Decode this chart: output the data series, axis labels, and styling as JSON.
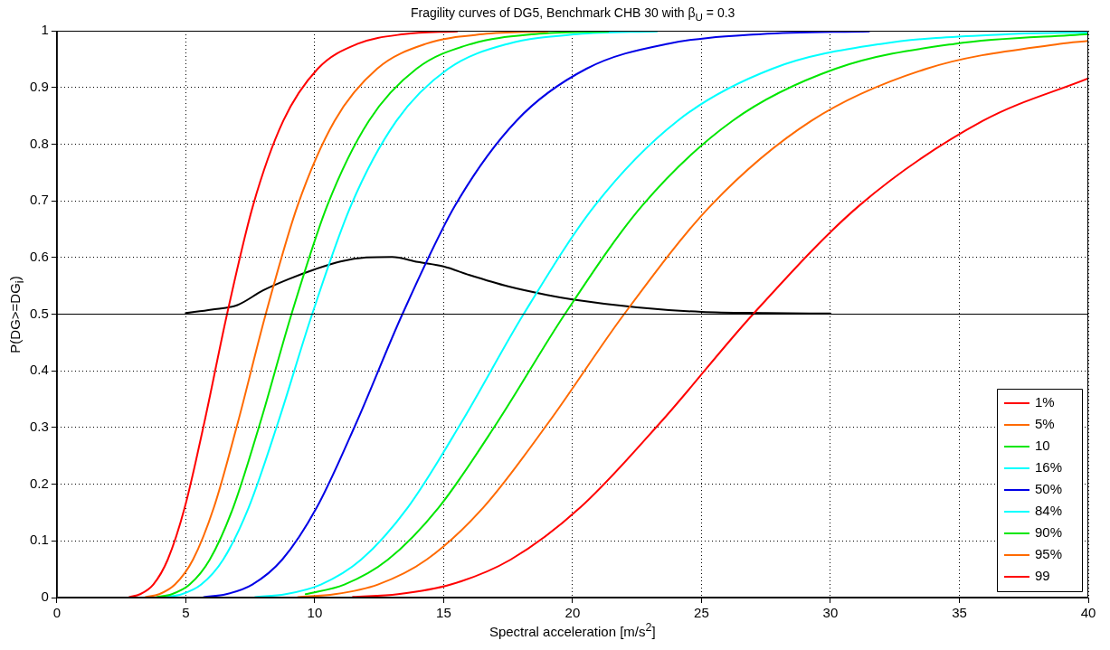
{
  "chart_data": {
    "type": "line",
    "title": "Fragility curves of DG5, Benchmark CHB 30 with β$_{U}$ = 0.3",
    "xlabel": "Spectral acceleration [m/s$^{2}$]",
    "ylabel": "P(DG>=DG$_{i}$)",
    "xlim": [
      0,
      40
    ],
    "xticks": [
      0,
      5,
      10,
      15,
      20,
      25,
      30,
      35,
      40
    ],
    "ylim": [
      0,
      1
    ],
    "yticks": [
      0,
      0.1,
      0.2,
      0.3,
      0.4,
      0.5,
      0.6,
      0.7,
      0.8,
      0.9,
      1
    ],
    "grid": true,
    "legend": "bottom right",
    "marker": "none",
    "line_style": "solid",
    "ref_lines": [
      {
        "axis": "y",
        "value": 0.5,
        "color": "#000000"
      }
    ],
    "series": [
      {
        "name": "1%",
        "color": "#ff0000",
        "x": [
          2.81,
          3.23,
          3.74,
          4.3,
          4.96,
          5.72,
          6.6,
          7.61,
          8.78,
          10.12,
          11.67,
          13.46,
          15.52
        ],
        "values": [
          0.001,
          0.006,
          0.023,
          0.067,
          0.159,
          0.309,
          0.5,
          0.692,
          0.841,
          0.933,
          0.977,
          0.994,
          0.999
        ]
      },
      {
        "name": "5%",
        "color": "#ff6a00",
        "x": [
          3.44,
          3.97,
          4.58,
          5.28,
          6.09,
          7.02,
          8.1,
          9.34,
          10.77,
          12.42,
          14.32,
          16.52,
          19.04
        ],
        "values": [
          0.001,
          0.006,
          0.023,
          0.067,
          0.159,
          0.309,
          0.5,
          0.692,
          0.841,
          0.933,
          0.977,
          0.994,
          0.999
        ]
      },
      {
        "name": "10",
        "color": "#00e600",
        "x": [
          3.87,
          4.46,
          5.15,
          5.93,
          6.84,
          7.89,
          9.1,
          10.49,
          12.1,
          13.95,
          16.09,
          18.55,
          21.39
        ],
        "values": [
          0.001,
          0.006,
          0.023,
          0.067,
          0.159,
          0.309,
          0.5,
          0.692,
          0.841,
          0.933,
          0.977,
          0.994,
          0.999
        ]
      },
      {
        "name": "16%",
        "color": "#00ffff",
        "x": [
          4.21,
          4.85,
          5.6,
          6.45,
          7.44,
          8.58,
          9.9,
          11.41,
          13.17,
          15.18,
          17.5,
          20.19,
          23.27
        ],
        "values": [
          0.001,
          0.006,
          0.023,
          0.067,
          0.159,
          0.309,
          0.5,
          0.692,
          0.841,
          0.933,
          0.977,
          0.994,
          0.999
        ]
      },
      {
        "name": "50%",
        "color": "#0000e6",
        "x": [
          5.7,
          6.57,
          7.58,
          8.74,
          10.08,
          11.62,
          13.4,
          15.45,
          17.82,
          20.54,
          23.69,
          27.32,
          31.5
        ],
        "values": [
          0.001,
          0.006,
          0.023,
          0.067,
          0.159,
          0.309,
          0.5,
          0.692,
          0.841,
          0.933,
          0.977,
          0.994,
          0.999
        ]
      },
      {
        "name": "84%",
        "color": "#00ffff",
        "x": [
          7.69,
          8.87,
          10.24,
          11.8,
          13.61,
          15.69,
          18.1,
          20.87,
          24.07,
          27.75,
          32.0,
          36.91,
          40
        ],
        "values": [
          0.001,
          0.006,
          0.023,
          0.067,
          0.159,
          0.309,
          0.5,
          0.692,
          0.841,
          0.933,
          0.977,
          0.994,
          0.997
        ]
      },
      {
        "name": "90%",
        "color": "#00e600",
        "x": [
          9.65,
          11.15,
          12.84,
          14.81,
          17.08,
          19.7,
          22.71,
          26.2,
          30.2,
          34.83,
          40
        ],
        "values": [
          0.006,
          0.023,
          0.067,
          0.159,
          0.309,
          0.5,
          0.692,
          0.841,
          0.933,
          0.977,
          0.994
        ]
      },
      {
        "name": "95%",
        "color": "#ff6a00",
        "x": [
          9.35,
          10.78,
          12.45,
          14.34,
          16.54,
          19.07,
          22.0,
          25.37,
          29.26,
          33.73,
          38.9,
          40
        ],
        "values": [
          0.001,
          0.006,
          0.023,
          0.067,
          0.159,
          0.309,
          0.5,
          0.692,
          0.841,
          0.933,
          0.977,
          0.982
        ]
      },
      {
        "name": "99",
        "color": "#ff0000",
        "x": [
          11.48,
          13.23,
          15.28,
          17.6,
          20.3,
          23.41,
          27.0,
          31.13,
          35.91,
          40
        ],
        "values": [
          0.001,
          0.006,
          0.023,
          0.067,
          0.159,
          0.309,
          0.5,
          0.692,
          0.841,
          0.916
        ]
      },
      {
        "color": "#000000",
        "x": [
          5,
          6,
          7,
          8,
          9,
          10,
          11,
          12,
          13,
          14,
          15,
          16,
          17.5,
          19,
          20,
          22.5,
          25,
          27.5,
          30
        ],
        "values": [
          0.502,
          0.508,
          0.516,
          0.542,
          0.562,
          0.579,
          0.593,
          0.6,
          0.601,
          0.592,
          0.584,
          0.569,
          0.549,
          0.534,
          0.526,
          0.512,
          0.504,
          0.502,
          0.501
        ]
      }
    ]
  }
}
